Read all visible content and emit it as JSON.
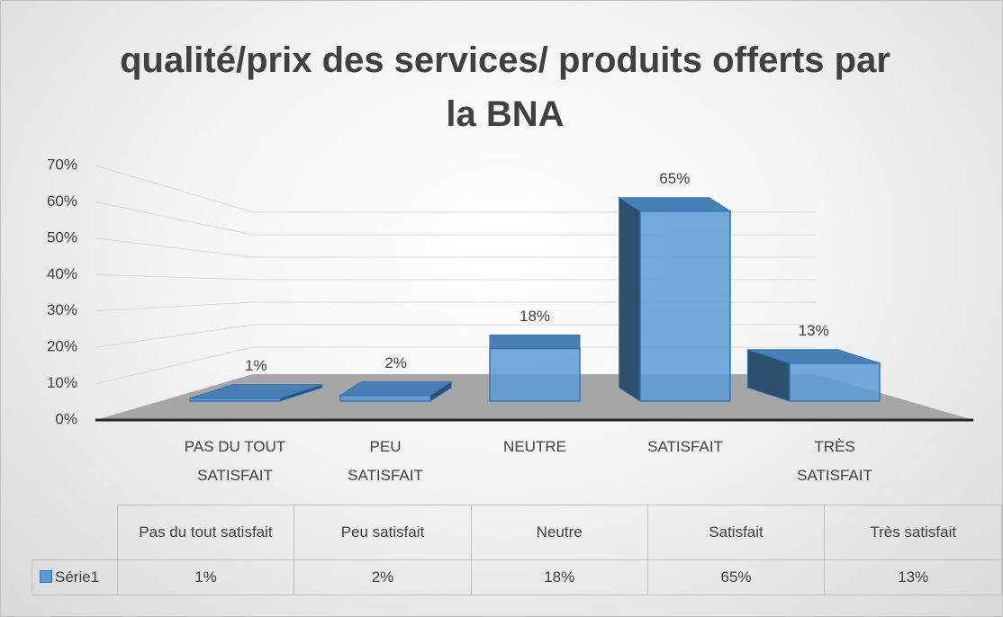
{
  "chart_data": {
    "type": "bar3d",
    "title": "qualité/prix des services/ produits offerts par la BNA",
    "categories": [
      "PAS DU TOUT SATISFAIT",
      "PEU SATISFAIT",
      "NEUTRE",
      "SATISFAIT",
      "TRÈS SATISFAIT"
    ],
    "values": [
      1,
      2,
      18,
      65,
      13
    ],
    "value_labels": [
      "1%",
      "2%",
      "18%",
      "65%",
      "13%"
    ],
    "color": "#5b9bd5",
    "ylim": [
      0,
      70
    ],
    "yticks": [
      {
        "value": 0,
        "label": "0%"
      },
      {
        "value": 10,
        "label": "10%"
      },
      {
        "value": 20,
        "label": "20%"
      },
      {
        "value": 30,
        "label": "30%"
      },
      {
        "value": 40,
        "label": "40%"
      },
      {
        "value": 50,
        "label": "50%"
      },
      {
        "value": 60,
        "label": "60%"
      },
      {
        "value": 70,
        "label": "70%"
      }
    ],
    "grid": true,
    "data_table": {
      "columns": [
        "Pas du tout satisfait",
        "Peu satisfait",
        "Neutre",
        "Satisfait",
        "Très satisfait"
      ],
      "series_name": "Série1",
      "cells": [
        "1%",
        "2%",
        "18%",
        "65%",
        "13%"
      ]
    }
  }
}
